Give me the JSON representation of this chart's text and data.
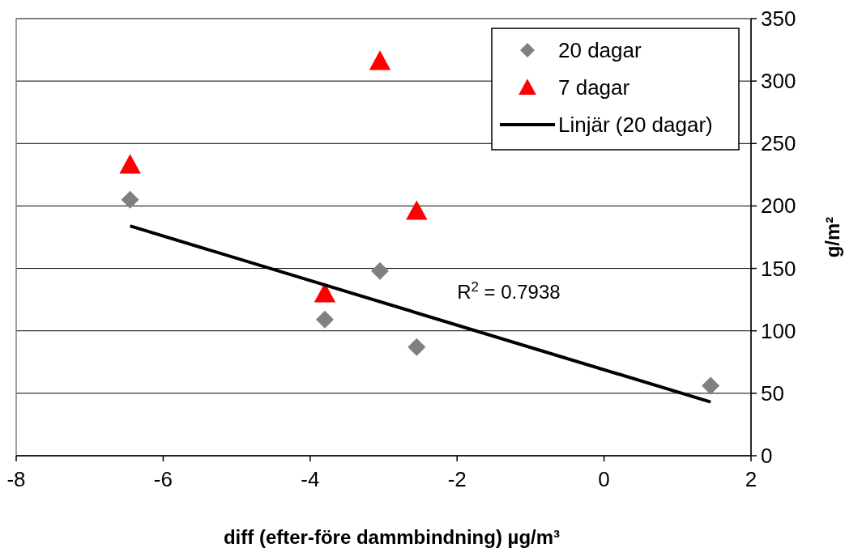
{
  "chart_data": {
    "type": "scatter",
    "xlabel": "diff (efter-före dammbindning) µg/m³",
    "ylabel": "g/m²",
    "xlim": [
      -8,
      2
    ],
    "xticks": [
      -8,
      -6,
      -4,
      -2,
      0,
      2
    ],
    "ylim": [
      0,
      350
    ],
    "yticks": [
      0,
      50,
      100,
      150,
      200,
      250,
      300,
      350
    ],
    "grid": "y",
    "legend": "top right",
    "series": [
      {
        "name": "20 dagar",
        "color": "#808080",
        "marker": "diamond",
        "x": [
          -6.45,
          -3.8,
          -3.05,
          -2.55,
          1.45
        ],
        "values": [
          205,
          109,
          148,
          87,
          56
        ]
      },
      {
        "name": "7 dagar",
        "color": "#ff0000",
        "marker": "triangle",
        "x": [
          -6.45,
          -3.8,
          -3.05,
          -2.55
        ],
        "values": [
          233,
          130,
          316,
          196
        ]
      },
      {
        "name": "Linjär (20 dagar)",
        "type": "line",
        "color": "#000000",
        "x": [
          -6.45,
          1.45
        ],
        "values": [
          184,
          43
        ]
      }
    ],
    "annotations": [
      "R$^{2}$ = 0.7938"
    ]
  }
}
